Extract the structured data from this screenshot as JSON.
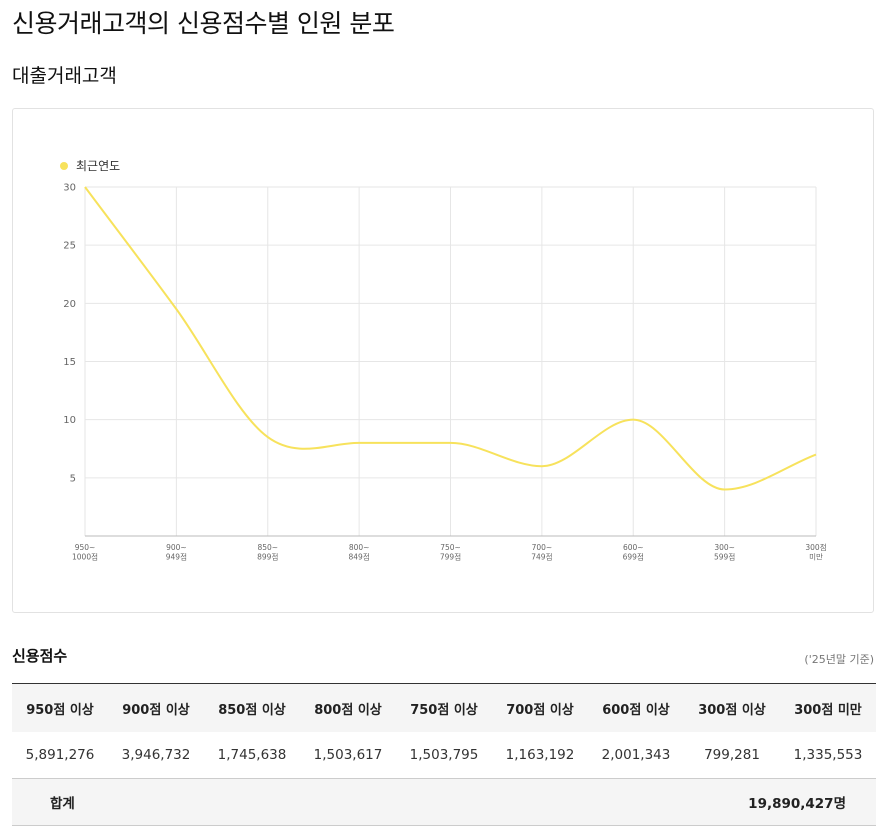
{
  "header": {
    "page_title": "신용거래고객의 신용점수별 인원 분포",
    "section_title": "대출거래고객"
  },
  "colors": {
    "series_line": "#f7e25c",
    "grid": "#e6e6e6",
    "axis": "#bbbbbb",
    "header_bg": "#f5f5f5"
  },
  "chart_data": {
    "type": "line",
    "categories": [
      "950~\n1000점",
      "900~\n949점",
      "850~\n899점",
      "800~\n849점",
      "750~\n799점",
      "700~\n749점",
      "600~\n699점",
      "300~\n599점",
      "300점\n미만"
    ],
    "series": [
      {
        "name": "최근연도",
        "values": [
          30,
          19.5,
          8.5,
          8,
          8,
          6,
          10,
          4,
          7
        ]
      }
    ],
    "yticks": [
      5,
      10,
      15,
      20,
      25,
      30
    ],
    "ylim": [
      0,
      30
    ],
    "grid": true,
    "legend_position": "top-left",
    "smooth": true
  },
  "table": {
    "title": "신용점수",
    "basis_note": "('25년말 기준)",
    "headers": [
      "950점 이상",
      "900점 이상",
      "850점 이상",
      "800점 이상",
      "750점 이상",
      "700점 이상",
      "600점 이상",
      "300점 이상",
      "300점 미만"
    ],
    "values": [
      "5,891,276",
      "3,946,732",
      "1,745,638",
      "1,503,617",
      "1,503,795",
      "1,163,192",
      "2,001,343",
      "799,281",
      "1,335,553"
    ],
    "total_label": "합계",
    "total_value": "19,890,427명"
  }
}
